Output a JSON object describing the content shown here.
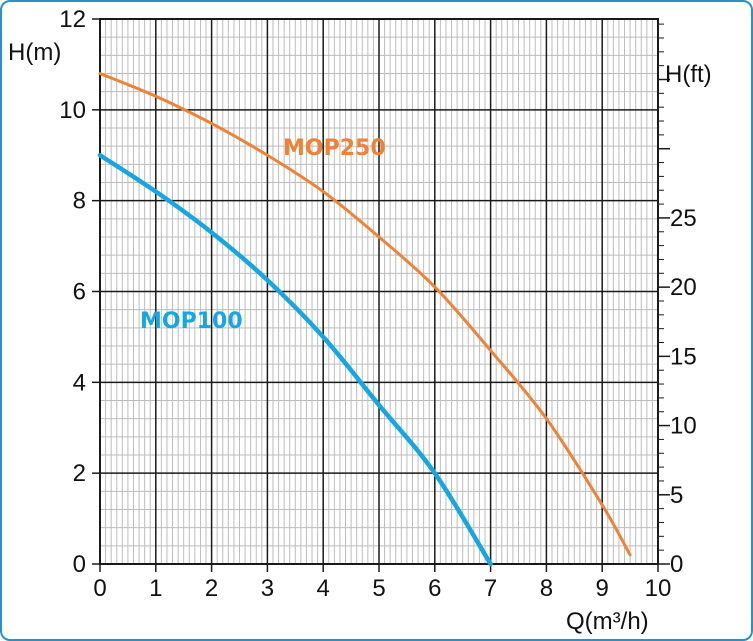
{
  "colors": {
    "frame": "#2b8fc9",
    "grid_major": "#1a1a1a",
    "grid_minor": "#bdbdbd",
    "mop100": "#17a6e0",
    "mop250": "#ee8236"
  },
  "chart_data": {
    "type": "line",
    "title": "",
    "xlabel": "Q(m³/h)",
    "ylabel": "H(m)",
    "y2label": "H(ft)",
    "xlim": [
      0,
      10
    ],
    "ylim": [
      0,
      12
    ],
    "y2lim": [
      0,
      39.37
    ],
    "x_ticks": [
      "0",
      "1",
      "2",
      "3",
      "4",
      "5",
      "6",
      "7",
      "8",
      "9",
      "10"
    ],
    "y_ticks": [
      "0",
      "2",
      "4",
      "6",
      "8",
      "10",
      "12"
    ],
    "y2_ticks": [
      "0",
      "5",
      "10",
      "15",
      "20",
      "25"
    ],
    "grid": true,
    "series": [
      {
        "name": "MOP100",
        "color": "#17a6e0",
        "x": [
          0,
          1,
          2,
          3,
          4,
          5,
          6,
          7
        ],
        "y": [
          9.0,
          8.2,
          7.3,
          6.25,
          5.0,
          3.5,
          2.0,
          0.0
        ]
      },
      {
        "name": "MOP250",
        "color": "#ee8236",
        "x": [
          0,
          1,
          2,
          3,
          4,
          5,
          6,
          7,
          8,
          9,
          9.5
        ],
        "y": [
          10.8,
          10.3,
          9.7,
          9.0,
          8.2,
          7.2,
          6.1,
          4.7,
          3.2,
          1.3,
          0.2
        ]
      }
    ]
  }
}
